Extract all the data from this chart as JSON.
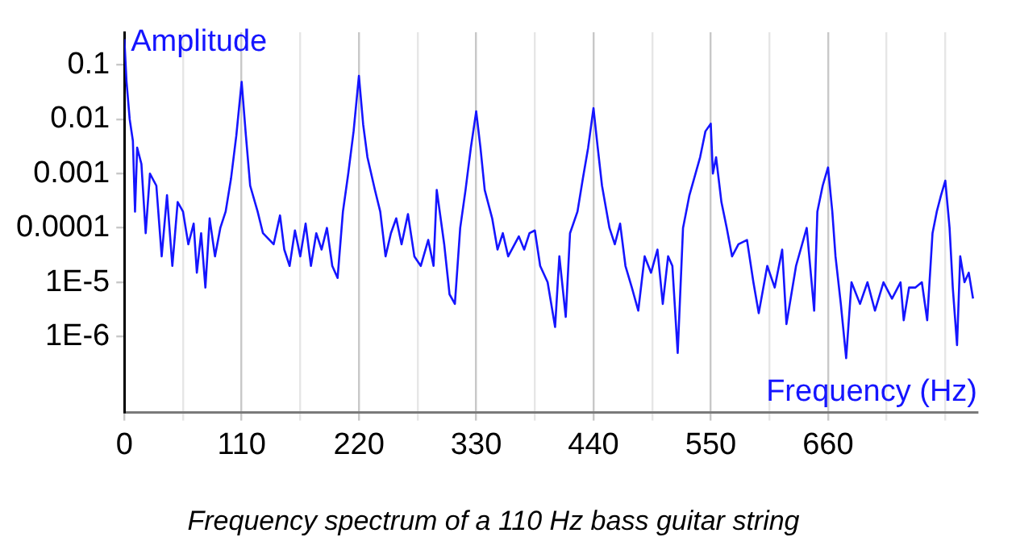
{
  "chart_data": {
    "type": "line",
    "title": "Frequency spectrum of a 110 Hz bass guitar string",
    "xlabel": "Frequency (Hz)",
    "ylabel": "Amplitude",
    "log": "y",
    "grid": "x",
    "marker": "none",
    "line_style": "solid",
    "xlim": [
      0,
      800
    ],
    "xticks": [
      0,
      {
        "value": 55,
        "label": null
      },
      110,
      {
        "value": 165,
        "label": null
      },
      220,
      {
        "value": 275,
        "label": null
      },
      330,
      {
        "value": 385,
        "label": null
      },
      440,
      {
        "value": 495,
        "label": null
      },
      550,
      {
        "value": 605,
        "label": null
      },
      660,
      {
        "value": 715,
        "label": null
      },
      {
        "value": 770,
        "label": null
      }
    ],
    "ylim": [
      4e-08,
      0.4
    ],
    "yticks": [
      {
        "value": 0.1,
        "label": "0.1"
      },
      {
        "value": 0.01,
        "label": "0.01"
      },
      {
        "value": 0.001,
        "label": "0.001"
      },
      {
        "value": 0.0001,
        "label": "0.0001"
      },
      {
        "value": 1e-05,
        "label": "1E-5"
      },
      {
        "value": 1e-06,
        "label": "1E-6"
      }
    ],
    "series": [
      {
        "color": "#1515ff",
        "x": [
          0,
          2,
          5,
          8,
          10,
          12,
          16,
          20,
          24,
          30,
          35,
          40,
          45,
          50,
          55,
          60,
          65,
          68,
          72,
          76,
          80,
          85,
          90,
          95,
          100,
          105,
          110,
          114,
          118,
          125,
          130,
          140,
          146,
          150,
          155,
          160,
          165,
          170,
          175,
          180,
          185,
          190,
          195,
          200,
          205,
          210,
          215,
          220,
          224,
          228,
          235,
          240,
          245,
          250,
          255,
          260,
          266,
          272,
          278,
          285,
          290,
          293,
          300,
          305,
          310,
          315,
          320,
          325,
          330,
          334,
          338,
          345,
          350,
          355,
          360,
          370,
          375,
          380,
          385,
          390,
          397,
          404,
          408,
          414,
          418,
          425,
          430,
          435,
          440,
          444,
          448,
          455,
          460,
          465,
          470,
          476,
          482,
          488,
          494,
          500,
          505,
          510,
          514,
          519,
          524,
          530,
          540,
          545,
          550,
          552,
          555,
          560,
          565,
          570,
          576,
          584,
          590,
          595,
          603,
          610,
          617,
          621,
          630,
          640,
          647,
          650,
          655,
          660,
          664,
          667,
          672,
          677,
          682,
          690,
          697,
          704,
          712,
          720,
          728,
          731,
          736,
          742,
          748,
          753,
          758,
          762,
          766,
          770,
          774,
          777,
          781,
          784,
          788,
          792,
          796
        ],
        "values": [
          0.3,
          0.05,
          0.01,
          0.004,
          0.0002,
          0.003,
          0.0015,
          8e-05,
          0.001,
          0.0006,
          3e-05,
          0.0004,
          2e-05,
          0.0003,
          0.0002,
          5e-05,
          0.00012,
          1.5e-05,
          8e-05,
          8e-06,
          0.00015,
          3e-05,
          0.0001,
          0.0002,
          0.0008,
          0.005,
          0.049,
          0.005,
          0.0006,
          0.0002,
          8e-05,
          5e-05,
          0.00017,
          4e-05,
          2e-05,
          9e-05,
          3e-05,
          0.00012,
          2e-05,
          8e-05,
          4e-05,
          0.0001,
          2e-05,
          1.2e-05,
          0.0002,
          0.001,
          0.006,
          0.063,
          0.008,
          0.002,
          0.0005,
          0.0002,
          3e-05,
          8e-05,
          0.00015,
          5e-05,
          0.00018,
          3e-05,
          2e-05,
          6e-05,
          2e-05,
          0.0005,
          5e-05,
          6e-06,
          4e-06,
          0.0001,
          0.0005,
          0.003,
          0.014,
          0.003,
          0.0005,
          0.00015,
          4e-05,
          8e-05,
          3e-05,
          7e-05,
          4e-05,
          8e-05,
          9e-05,
          2e-05,
          1e-05,
          1.5e-06,
          3e-05,
          2.3e-06,
          8e-05,
          0.0002,
          0.0008,
          0.003,
          0.016,
          0.003,
          0.0006,
          0.0001,
          5e-05,
          0.00012,
          2e-05,
          8e-06,
          3e-06,
          3e-05,
          1.5e-05,
          4e-05,
          4e-06,
          3e-05,
          2e-05,
          5e-07,
          0.0001,
          0.0004,
          0.002,
          0.006,
          0.0083,
          0.001,
          0.002,
          0.0003,
          0.0001,
          3e-05,
          5e-05,
          6e-05,
          1e-05,
          2.7e-06,
          2e-05,
          8e-06,
          4e-05,
          1.7e-06,
          2e-05,
          0.0001,
          3e-06,
          0.0002,
          0.0006,
          0.0013,
          0.0002,
          3e-05,
          4e-06,
          4e-07,
          1e-05,
          4e-06,
          1e-05,
          3e-06,
          1e-05,
          5e-06,
          1e-05,
          2e-06,
          8e-06,
          8e-06,
          1e-05,
          2e-06,
          8e-05,
          0.0002,
          0.0004,
          0.00074,
          0.0001,
          8e-06,
          7e-07,
          3e-05,
          1e-05,
          1.5e-05,
          5e-06
        ]
      }
    ]
  }
}
